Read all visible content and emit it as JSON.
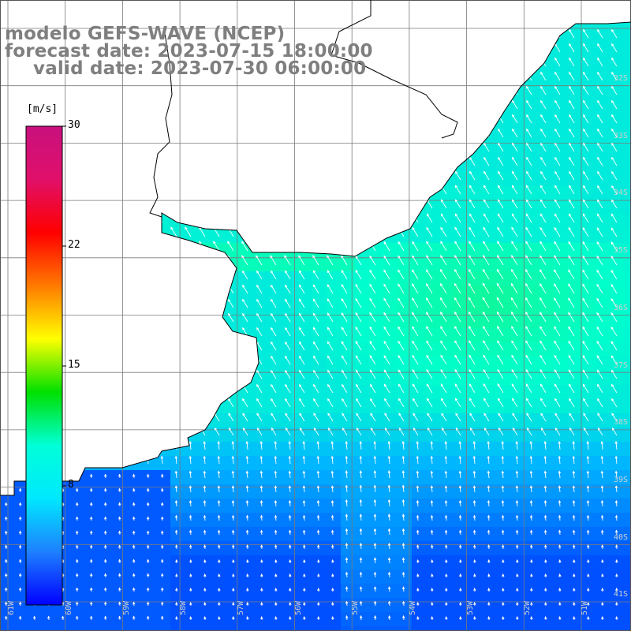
{
  "title": {
    "line1": "modelo GEFS-WAVE (NCEP)",
    "line2": "forecast date: 2023-07-15 18:00:00",
    "line3": "valid date: 2023-07-30 06:00:00"
  },
  "colorbar": {
    "unit": "[m/s]",
    "ticks": [
      "30",
      "22",
      "15",
      "8"
    ],
    "colors": [
      "#c8107e",
      "#e0106a",
      "#ff0000",
      "#ff7a00",
      "#ffff00",
      "#00e000",
      "#00ffd8",
      "#00e8ff",
      "#1e80ff",
      "#0000ff"
    ]
  },
  "map": {
    "lon_labels": [
      "61W",
      "60W",
      "59W",
      "58W",
      "57W",
      "56W",
      "55W",
      "54W",
      "53W",
      "52W",
      "51W"
    ],
    "lat_labels": [
      "32S",
      "33S",
      "34S",
      "35S",
      "36S",
      "37S",
      "38S",
      "39S",
      "40S",
      "41S"
    ],
    "ocean_colors": {
      "low": "#0050ff",
      "mid": "#00b8ff",
      "high": "#00ffcc",
      "peak": "#22ee66"
    },
    "land_color": "#ffffff",
    "coast_color": "#000000"
  }
}
